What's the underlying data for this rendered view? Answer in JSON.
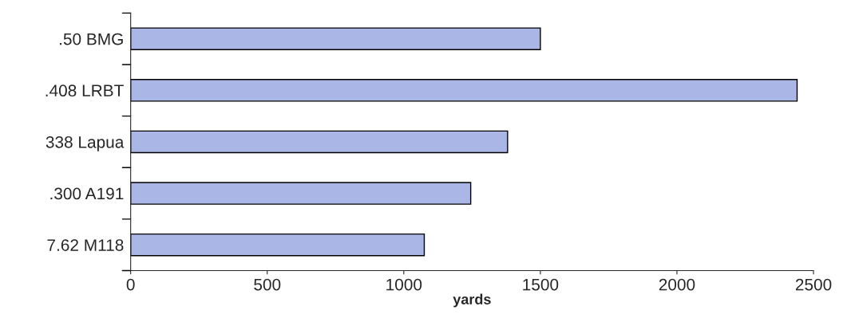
{
  "chart_data": {
    "type": "bar",
    "orientation": "horizontal",
    "xlabel": "yards",
    "categories": [
      ".50 BMG",
      ".408 LRBT",
      "338 Lapua",
      ".300 A191",
      "7.62 M118"
    ],
    "values": [
      1500,
      2440,
      1380,
      1245,
      1075
    ],
    "color": "#aab6e6",
    "xlim": [
      0,
      2500
    ],
    "xticks": [
      0,
      500,
      1000,
      1500,
      2000,
      2500
    ],
    "grid": false
  }
}
